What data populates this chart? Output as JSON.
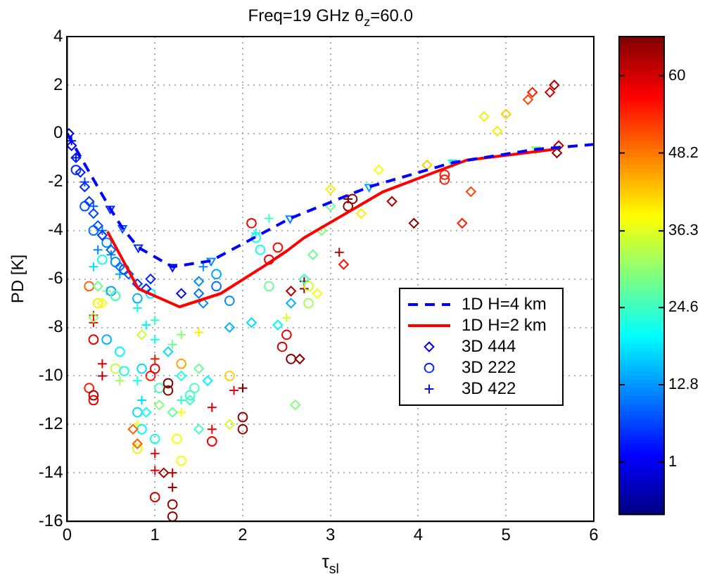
{
  "chart_data": {
    "type": "scatter",
    "title": "Freq=19 GHz θ$_{z}$=60.0",
    "xlabel": "τ$_{sl}$",
    "ylabel": "PD [K]",
    "xlim": [
      0,
      6
    ],
    "xticks": [
      0,
      1,
      2,
      3,
      4,
      5,
      6
    ],
    "ylim": [
      -16,
      4
    ],
    "yticks": [
      -16,
      -14,
      -12,
      -10,
      -8,
      -6,
      -4,
      -2,
      0,
      2,
      4
    ],
    "grid": true,
    "legend": "center right",
    "clim": [
      -7,
      66
    ],
    "cticks": [
      1,
      12.8,
      24.6,
      36.3,
      48.2,
      60
    ],
    "series": [
      {
        "name": "1D H=4 km",
        "type": "line",
        "color": "#0000ff",
        "line_style": "dashed",
        "marker": "none",
        "x": [
          0,
          0.49,
          0.63,
          0.81,
          1.2,
          1.64,
          2.54,
          3.44,
          4.39,
          5.34,
          6
        ],
        "values": [
          0,
          -3.1,
          -3.9,
          -4.7,
          -5.5,
          -5.25,
          -3.5,
          -2.2,
          -1.2,
          -0.65,
          -0.45
        ]
      },
      {
        "name": "1D H=2 km",
        "type": "line",
        "color": "#ff0000",
        "line_style": "solid",
        "marker": "none",
        "x": [
          0.46,
          0.81,
          1.28,
          1.75,
          2.23,
          2.5,
          2.7,
          3.6,
          4.55,
          5.55
        ],
        "values": [
          -4.05,
          -6.4,
          -7.15,
          -6.6,
          -5.5,
          -4.85,
          -4.3,
          -2.4,
          -1.1,
          -0.65
        ]
      },
      {
        "name": "3D 444",
        "type": "scatter",
        "marker": "diamond",
        "x": [
          0.02,
          0.05,
          0.1,
          0.15,
          0.2,
          0.25,
          0.3,
          0.35,
          0.4,
          0.5,
          0.6,
          0.7,
          0.8,
          0.9,
          0.95,
          1.3,
          1.5,
          1.5,
          1.55,
          1.85,
          2.1,
          2.4,
          2.7,
          2.8,
          2.9,
          3.0,
          2.55,
          2.65,
          0.35,
          0.4,
          0.3,
          0.85,
          1.15,
          1.3,
          1.5,
          1.6,
          1.4,
          0.9,
          0.75,
          0.8,
          1.2,
          1.5,
          1.1,
          1.85,
          2.6,
          2.85,
          3.35,
          3.0,
          3.55,
          3.7,
          3.95,
          4.1,
          4.5,
          4.6,
          4.75,
          4.9,
          5.0,
          5.25,
          5.3,
          5.5,
          5.55,
          5.6,
          5.58,
          3.15,
          2.55,
          1.05
        ],
        "values": [
          0,
          -0.5,
          -1,
          -1.6,
          -2.2,
          -2.8,
          -3.3,
          -3.8,
          -4.2,
          -4.8,
          -5.5,
          -5.8,
          -6.2,
          -6.4,
          -6,
          -6.6,
          -6.1,
          -6.6,
          -7,
          -8,
          -7.8,
          -7.9,
          -6,
          -5,
          -4,
          -3,
          -7,
          -9.3,
          -6.3,
          -7,
          -7.6,
          -8.3,
          -9,
          -10,
          -9.7,
          -10.2,
          -11,
          -11.5,
          -12.2,
          -12.8,
          -11.5,
          -12.2,
          -14,
          -12,
          -11.2,
          -6.6,
          -3.3,
          -2.3,
          -1.5,
          -2.8,
          -3.7,
          -1.3,
          -3.7,
          -2.4,
          0.7,
          0.1,
          0.8,
          1.4,
          1.7,
          1.7,
          2,
          -0.5,
          -0.8,
          -5.4,
          -6.5,
          -11.2
        ],
        "colors": [
          "#0000e1",
          "#0000fd",
          "#001aff",
          "#001aff",
          "#0028ff",
          "#0036ff",
          "#0044ff",
          "#0052ff",
          "#0036ff",
          "#0060ff",
          "#006eff",
          "#0052ff",
          "#0036ff",
          "#001aff",
          "#0028ff",
          "#000cff",
          "#008aff",
          "#006eff",
          "#008aff",
          "#00b4ff",
          "#00deff",
          "#00faff",
          "#41ffbe",
          "#6bff94",
          "#86ff79",
          "#6bff94",
          "#00b4ff",
          "#8d0000",
          "#6bff94",
          "#f6ff09",
          "#86ff79",
          "#ccff33",
          "#00deff",
          "#17ffe8",
          "#6bff94",
          "#00faff",
          "#41ffbe",
          "#17ffe8",
          "#ff6000",
          "#ff6000",
          "#6bff94",
          "#41ffbe",
          "#a90000",
          "#ccff33",
          "#86ff79",
          "#f6ff09",
          "#ffec00",
          "#ffec00",
          "#f6ff09",
          "#b70000",
          "#8d0000",
          "#ffd000",
          "#ff1a00",
          "#ff4400",
          "#ffec00",
          "#ffec00",
          "#ffd000",
          "#ff4400",
          "#ff1a00",
          "#d30000",
          "#a90000",
          "#b70000",
          "#8d0000",
          "#ff1a00",
          "#b70000",
          "#86ff79"
        ]
      },
      {
        "name": "3D 222",
        "type": "scatter",
        "marker": "circle",
        "x": [
          0.1,
          0.2,
          0.3,
          0.45,
          0.55,
          0.65,
          0.8,
          0.95,
          0.5,
          0.4,
          0.55,
          0.35,
          0.45,
          0.6,
          0.25,
          0.3,
          0.25,
          0.55,
          0.65,
          0.85,
          0.95,
          1.0,
          1.05,
          1.15,
          1.15,
          1.4,
          1.45,
          1.3,
          0.3,
          0.3,
          0.8,
          0.85,
          1.0,
          1.25,
          1.3,
          0.8,
          1.65,
          1.0,
          1.2,
          1.2,
          2.0,
          2.0,
          1.85,
          2.5,
          2.45,
          2.55,
          2.75,
          2.75,
          2.3,
          2.4,
          2.15,
          2.2,
          1.7,
          1.85,
          2.3,
          3.2,
          3.25,
          4.3,
          4.3,
          2.1,
          1.7
        ],
        "values": [
          -1.5,
          -3,
          -4,
          -4.5,
          -5.3,
          -5.6,
          -6.8,
          -6.6,
          -6.5,
          -5.2,
          -6.7,
          -7,
          -8.5,
          -9,
          -6.3,
          -8.5,
          -10.5,
          -9.7,
          -9.8,
          -9.7,
          -10,
          -9.7,
          -10.5,
          -10.3,
          -10.6,
          -10.8,
          -10.5,
          -9.5,
          -11,
          -10.8,
          -11.5,
          -12.2,
          -12.6,
          -12.6,
          -13.5,
          -13,
          -12.7,
          -15,
          -15.3,
          -15.8,
          -12.2,
          -11.7,
          -10,
          -8.3,
          -8.8,
          -9.3,
          -7,
          -6.3,
          -5.2,
          -4.7,
          -4.3,
          -4.8,
          -6.3,
          -6.9,
          -6.3,
          -3,
          -2.7,
          -1.7,
          -1.9,
          -3.7,
          -5.8
        ],
        "colors": [
          "#0028ff",
          "#0052ff",
          "#006eff",
          "#008aff",
          "#008aff",
          "#0052ff",
          "#00b4ff",
          "#00faff",
          "#00a6ff",
          "#17ffe8",
          "#41ffbe",
          "#ffec00",
          "#00b4ff",
          "#00faff",
          "#ff6000",
          "#ef0000",
          "#ff1a00",
          "#ccff33",
          "#17ffe8",
          "#00deff",
          "#ff1a00",
          "#ef0000",
          "#41ffbe",
          "#800000",
          "#800000",
          "#33ffcc",
          "#4fffb0",
          "#ffa600",
          "#ef0000",
          "#b70000",
          "#00deff",
          "#00faff",
          "#17ffe8",
          "#f6ff09",
          "#f6ff09",
          "#ffec00",
          "#ef0000",
          "#d30000",
          "#9b0000",
          "#8d0000",
          "#9b0000",
          "#9b0000",
          "#ffd000",
          "#ef0000",
          "#d30000",
          "#800000",
          "#a2ff5d",
          "#ccff33",
          "#ef0000",
          "#ff0c00",
          "#17ffe8",
          "#17ffe8",
          "#006eff",
          "#008aff",
          "#6bff94",
          "#8d0000",
          "#8d0000",
          "#ff1a00",
          "#ff1a00",
          "#ef0000",
          "#00a6ff"
        ]
      },
      {
        "name": "3D 422",
        "type": "scatter",
        "marker": "cross",
        "x": [
          0.05,
          0.1,
          0.2,
          0.3,
          0.4,
          0.5,
          0.6,
          0.3,
          0.45,
          0.3,
          0.3,
          0.8,
          0.9,
          1.0,
          1.0,
          1.2,
          1.3,
          0.4,
          0.4,
          0.6,
          0.8,
          0.85,
          1.0,
          1.3,
          1.3,
          1.65,
          0.8,
          1.0,
          1.0,
          1.2,
          1.2,
          1.65,
          2.0,
          1.9,
          2.7,
          2.7,
          2.15,
          2.3,
          3.2,
          3.1,
          2.5,
          1.5,
          1.55,
          0.35
        ],
        "values": [
          -0.3,
          -1,
          -2,
          -3,
          -4,
          -5,
          -5.8,
          -5.5,
          -6.5,
          -7.5,
          -7.8,
          -7.2,
          -7.9,
          -7.7,
          -8.5,
          -8.7,
          -8.3,
          -9.5,
          -10,
          -10.2,
          -10.2,
          -11,
          -9.3,
          -11,
          -11.5,
          -11.3,
          -12,
          -13.2,
          -13.9,
          -14,
          -14.6,
          -12.2,
          -10.5,
          -10.6,
          -6.1,
          -6.4,
          -4.1,
          -3.5,
          -2.7,
          -4.9,
          -7.6,
          -8.2,
          -5.5,
          -4.8
        ],
        "colors": [
          "#000cff",
          "#001aff",
          "#0044ff",
          "#0060ff",
          "#006eff",
          "#008aff",
          "#00a6ff",
          "#00deff",
          "#86ff79",
          "#ff1a00",
          "#ef0000",
          "#17ffe8",
          "#00faff",
          "#33ffcc",
          "#17ffe8",
          "#6bff94",
          "#86ff79",
          "#d30000",
          "#b70000",
          "#a2ff5d",
          "#17ffe8",
          "#00deff",
          "#ff1a00",
          "#33ffcc",
          "#f6ff09",
          "#d30000",
          "#f6ff09",
          "#ef0000",
          "#ef0000",
          "#b70000",
          "#9b0000",
          "#ef0000",
          "#800000",
          "#ef0000",
          "#9b0000",
          "#9b0000",
          "#00faff",
          "#41ffbe",
          "#800000",
          "#b70000",
          "#daff25",
          "#ffec00",
          "#008aff",
          "#008aff"
        ]
      },
      {
        "type": "scatter",
        "marker": "triangle",
        "x": [
          0.49,
          0.63,
          0.81,
          1.2,
          1.64,
          2.54,
          3.44,
          4.39,
          5.34
        ],
        "values": [
          -3.1,
          -3.9,
          -4.7,
          -5.5,
          -5.25,
          -3.5,
          -2.2,
          -1.2,
          -0.65
        ],
        "colors": [
          "#0028ff",
          "#0052ff",
          "#0028ff",
          "#000cff",
          "#008aff",
          "#008aff",
          "#00a6ff",
          "#00faff",
          "#86ff79"
        ]
      }
    ]
  }
}
